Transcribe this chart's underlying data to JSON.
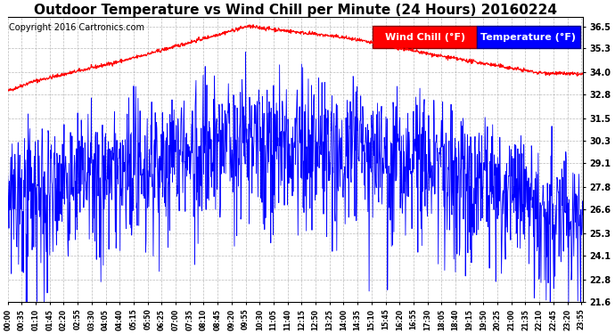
{
  "title": "Outdoor Temperature vs Wind Chill per Minute (24 Hours) 20160224",
  "copyright": "Copyright 2016 Cartronics.com",
  "ylabel_right_ticks": [
    36.5,
    35.3,
    34.0,
    32.8,
    31.5,
    30.3,
    29.1,
    27.8,
    26.6,
    25.3,
    24.1,
    22.8,
    21.6
  ],
  "ylim": [
    21.6,
    36.5
  ],
  "legend_wind_chill_label": "Wind Chill (°F)",
  "legend_temp_label": "Temperature (°F)",
  "wind_chill_color": "#0000ff",
  "temp_color": "#ff0000",
  "background_color": "#ffffff",
  "grid_color": "#aaaaaa",
  "num_minutes": 1440,
  "x_tick_interval": 35,
  "title_fontsize": 11,
  "copyright_fontsize": 7,
  "legend_fontsize": 8
}
